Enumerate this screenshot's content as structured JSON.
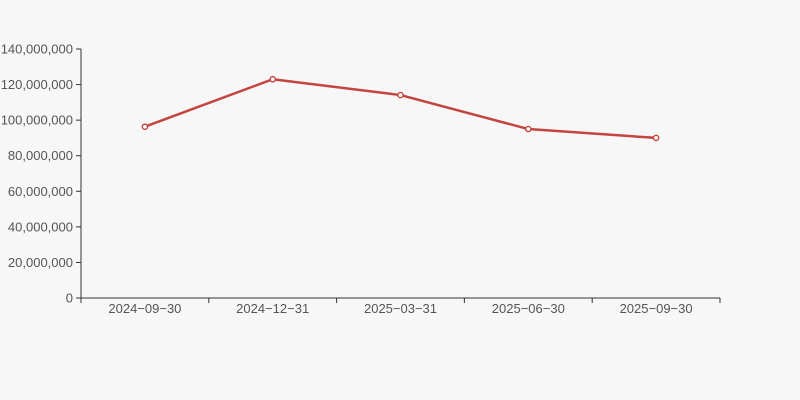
{
  "page": {
    "background_color": "#f7f7f7"
  },
  "chart_data": {
    "type": "line",
    "title": "",
    "xlabel": "",
    "ylabel": "",
    "categories": [
      "2024−09−30",
      "2024−12−31",
      "2025−03−31",
      "2025−06−30",
      "2025−09−30"
    ],
    "series": [
      {
        "name": "value",
        "values": [
          96300000,
          123000000,
          114100000,
          95000000,
          90000000
        ]
      }
    ],
    "ylim": [
      0,
      140000000
    ],
    "ytick_step": 20000000,
    "ytick_labels": [
      "0",
      "20,000,000",
      "40,000,000",
      "60,000,000",
      "80,000,000",
      "100,000,000",
      "120,000,000",
      "140,000,000"
    ],
    "grid": false,
    "legend": "none",
    "marker": "hollow-circle",
    "colors": {
      "line": "#c5443f",
      "marker_fill": "#ffffff",
      "axis_line": "#333333",
      "tick_text": "#555555",
      "background": "#f7f7f7"
    }
  }
}
